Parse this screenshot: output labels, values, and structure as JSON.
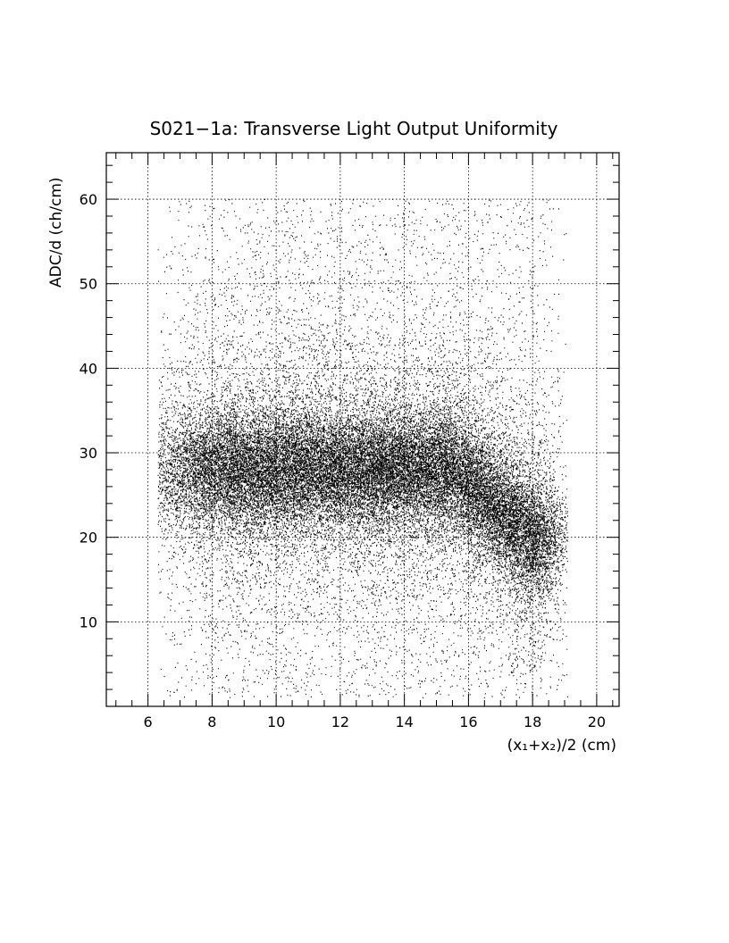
{
  "chart_data": {
    "type": "scatter",
    "title": "S021−1a: Transverse Light Output Uniformity",
    "xlabel": "(x₁+x₂)/2 (cm)",
    "ylabel": "ADC/d (ch/cm)",
    "xlim": [
      4.7,
      20.7
    ],
    "ylim": [
      0,
      65.5
    ],
    "x_ticks": [
      6,
      8,
      10,
      12,
      14,
      16,
      18,
      20
    ],
    "y_ticks": [
      10,
      20,
      30,
      40,
      50,
      60
    ],
    "grid": true,
    "legend": "none",
    "marker_color": "#000000",
    "distribution": {
      "x_range": [
        6.3,
        19.1
      ],
      "y_range": [
        1,
        60
      ],
      "core_x_range": [
        8.5,
        18
      ],
      "core_y": 28,
      "core_y_at_x18": 20,
      "points_shown": "dense (~tens of thousands)"
    }
  }
}
